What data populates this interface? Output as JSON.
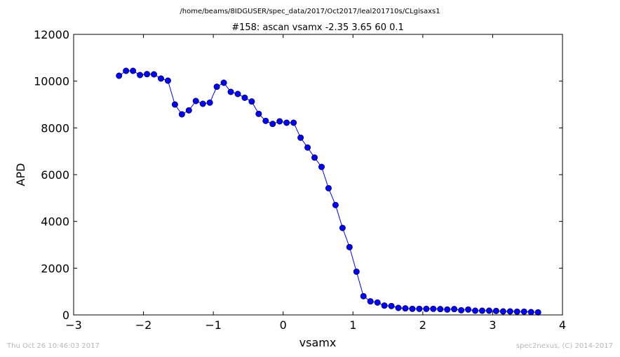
{
  "chart_data": {
    "type": "line",
    "suptitle": "/home/beams/8IDGUSER/spec_data/2017/Oct2017/leal201710s/CLgisaxs1",
    "title": "#158: ascan  vsamx -2.35 3.65  60 0.1",
    "xlabel": "vsamx",
    "ylabel": "APD",
    "xlim": [
      -3,
      4
    ],
    "ylim": [
      0,
      12000
    ],
    "xticks": [
      -3,
      -2,
      -1,
      0,
      1,
      2,
      3,
      4
    ],
    "yticks": [
      0,
      2000,
      4000,
      6000,
      8000,
      10000,
      12000
    ],
    "xtick_labels": [
      "−3",
      "−2",
      "−1",
      "0",
      "1",
      "2",
      "3",
      "4"
    ],
    "ytick_labels": [
      "0",
      "2000",
      "4000",
      "6000",
      "8000",
      "10000",
      "12000"
    ],
    "grid": false,
    "marker": "circle",
    "color": "#0000ff",
    "x": [
      -2.35,
      -2.25,
      -2.15,
      -2.05,
      -1.95,
      -1.85,
      -1.75,
      -1.65,
      -1.55,
      -1.45,
      -1.35,
      -1.25,
      -1.15,
      -1.05,
      -0.95,
      -0.85,
      -0.75,
      -0.65,
      -0.55,
      -0.45,
      -0.35,
      -0.25,
      -0.15,
      -0.05,
      0.05,
      0.15,
      0.25,
      0.35,
      0.45,
      0.55,
      0.65,
      0.75,
      0.85,
      0.95,
      1.05,
      1.15,
      1.25,
      1.35,
      1.45,
      1.55,
      1.65,
      1.75,
      1.85,
      1.95,
      2.05,
      2.15,
      2.25,
      2.35,
      2.45,
      2.55,
      2.65,
      2.75,
      2.85,
      2.95,
      3.05,
      3.15,
      3.25,
      3.35,
      3.45,
      3.55,
      3.65
    ],
    "y": [
      10230,
      10440,
      10440,
      10260,
      10300,
      10290,
      10110,
      10020,
      9000,
      8580,
      8750,
      9150,
      9030,
      9080,
      9760,
      9930,
      9540,
      9450,
      9290,
      9130,
      8600,
      8300,
      8170,
      8280,
      8220,
      8220,
      7580,
      7160,
      6730,
      6330,
      5420,
      4700,
      3720,
      2900,
      1850,
      800,
      580,
      530,
      400,
      380,
      300,
      280,
      260,
      260,
      260,
      260,
      250,
      230,
      250,
      200,
      230,
      180,
      180,
      180,
      170,
      150,
      150,
      140,
      140,
      120,
      110
    ]
  },
  "footer": {
    "timestamp": "Thu Oct 26 10:46:03 2017",
    "credit": "spec2nexus, (C) 2014-2017"
  }
}
